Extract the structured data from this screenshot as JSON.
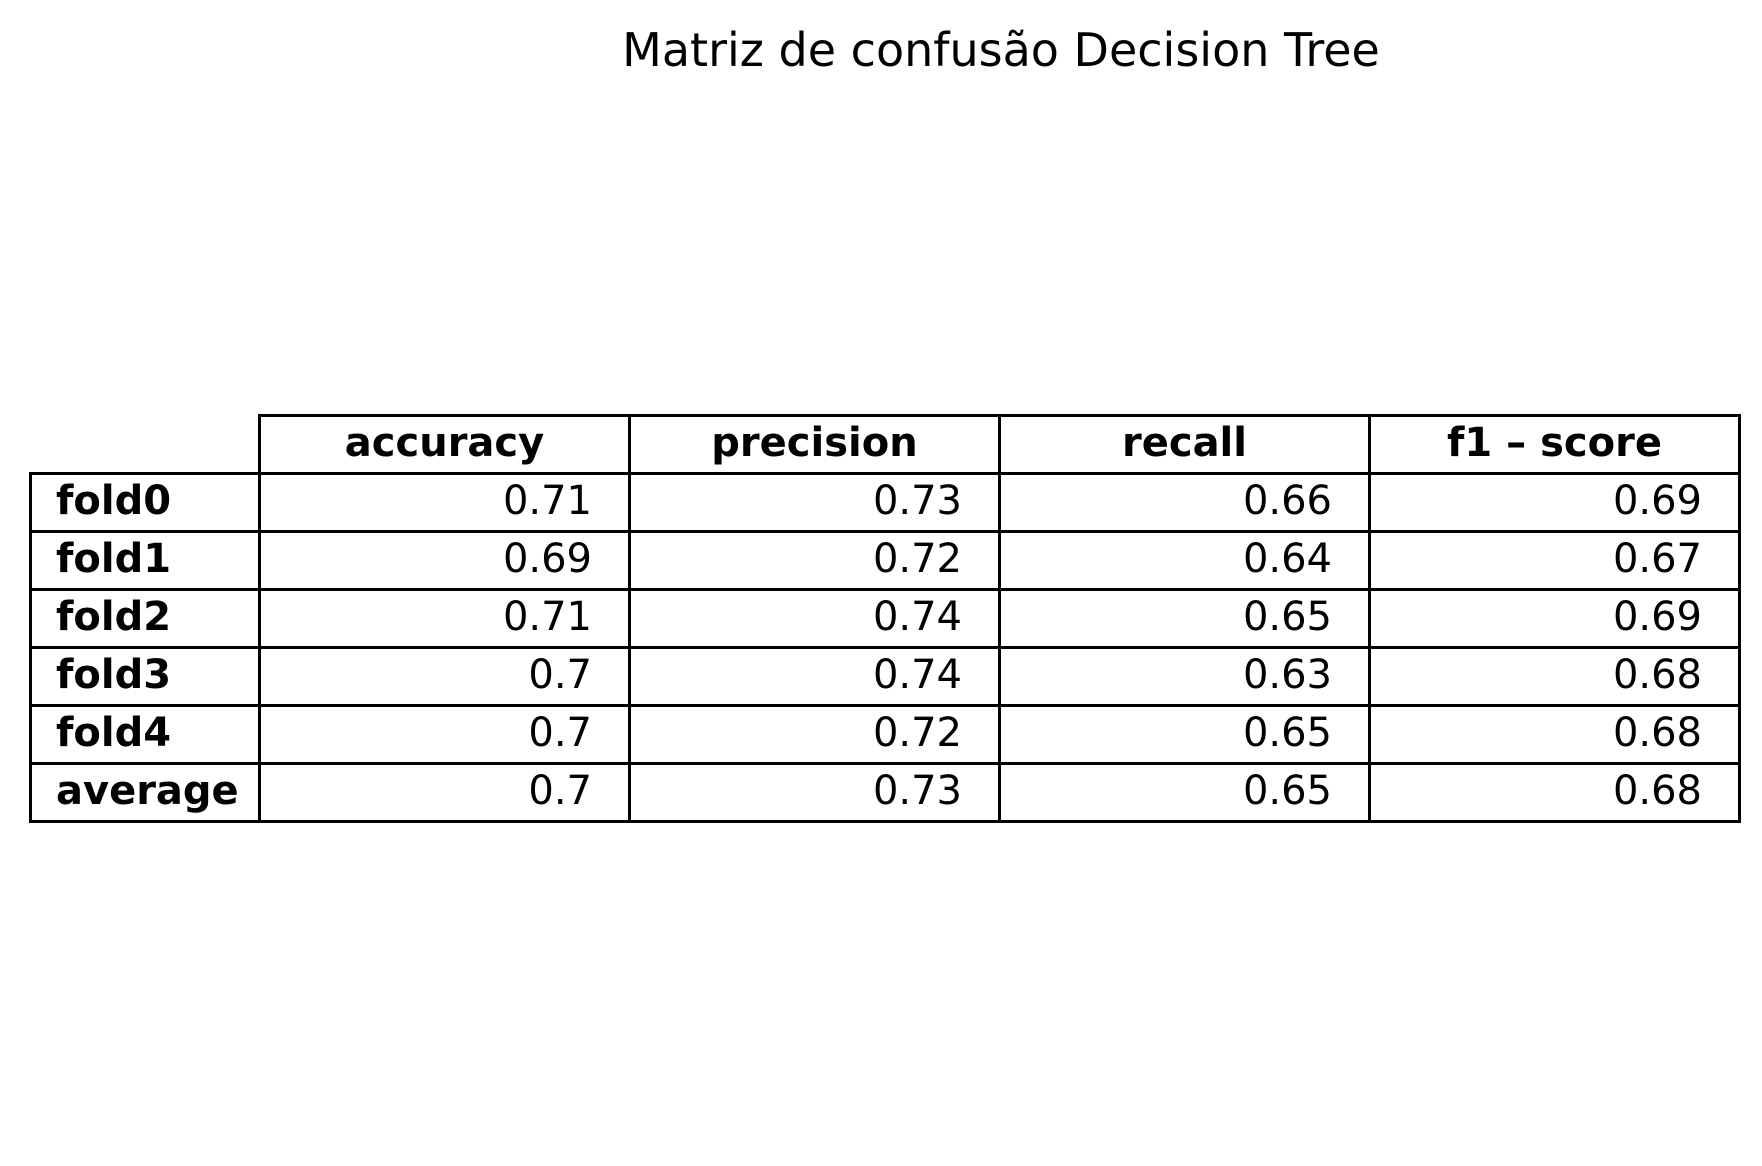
{
  "chart_data": {
    "type": "table",
    "title": "Matriz de confusão Decision Tree",
    "columns": [
      "accuracy",
      "precision",
      "recall",
      "f1 – score"
    ],
    "rows": [
      {
        "label": "fold0",
        "values": [
          "0.71",
          "0.73",
          "0.66",
          "0.69"
        ]
      },
      {
        "label": "fold1",
        "values": [
          "0.69",
          "0.72",
          "0.64",
          "0.67"
        ]
      },
      {
        "label": "fold2",
        "values": [
          "0.71",
          "0.74",
          "0.65",
          "0.69"
        ]
      },
      {
        "label": "fold3",
        "values": [
          "0.7",
          "0.74",
          "0.63",
          "0.68"
        ]
      },
      {
        "label": "fold4",
        "values": [
          "0.7",
          "0.72",
          "0.65",
          "0.68"
        ]
      },
      {
        "label": "average",
        "values": [
          "0.7",
          "0.73",
          "0.65",
          "0.68"
        ]
      }
    ]
  }
}
